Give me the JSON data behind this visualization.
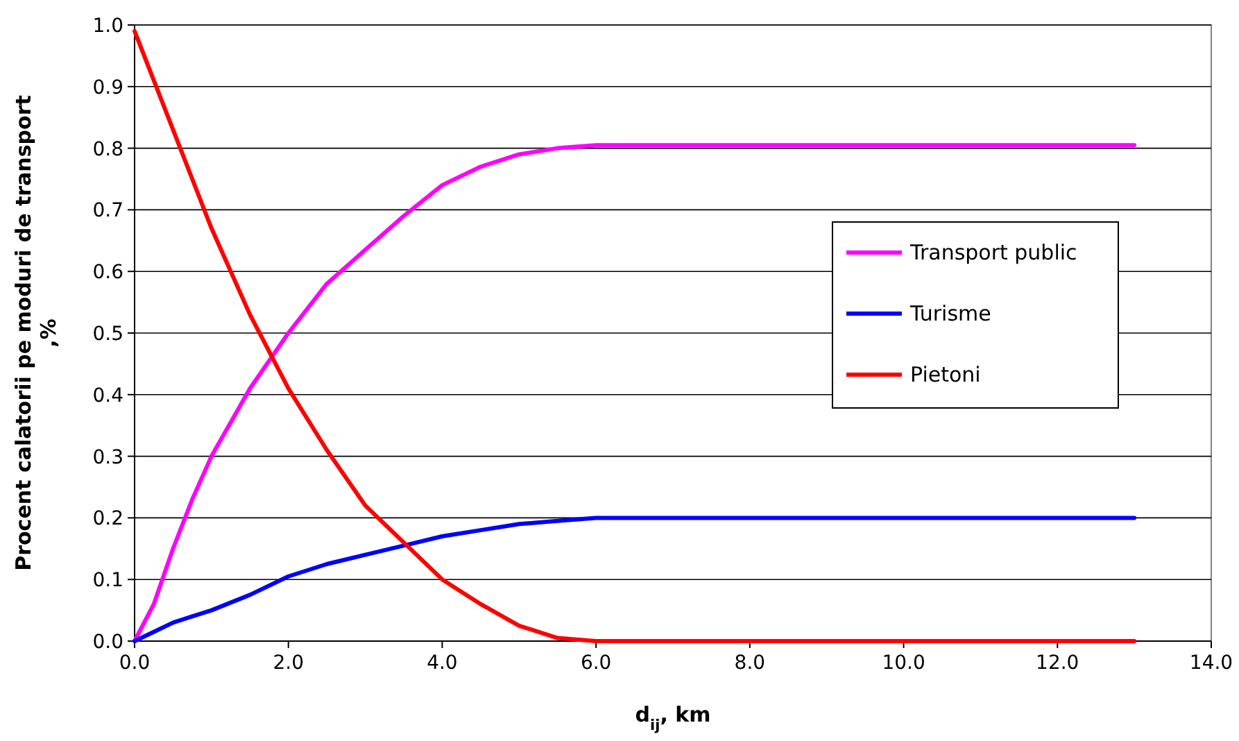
{
  "chart_data": {
    "type": "line",
    "xlabel": "d$_{ij}$, km",
    "ylabel": "Procent calatorii pe moduri de transport ,%",
    "xlim": [
      0,
      14
    ],
    "ylim": [
      0,
      1
    ],
    "xticks": [
      {
        "value": 0,
        "label": "0.0"
      },
      {
        "value": 2,
        "label": "2.0"
      },
      {
        "value": 4,
        "label": "4.0"
      },
      {
        "value": 6,
        "label": "6.0"
      },
      {
        "value": 8,
        "label": "8.0"
      },
      {
        "value": 10,
        "label": "10.0"
      },
      {
        "value": 12,
        "label": "12.0"
      },
      {
        "value": 14,
        "label": "14.0"
      }
    ],
    "yticks": [
      {
        "value": 0,
        "label": "0.0"
      },
      {
        "value": 0.1,
        "label": "0.1"
      },
      {
        "value": 0.2,
        "label": "0.2"
      },
      {
        "value": 0.3,
        "label": "0.3"
      },
      {
        "value": 0.4,
        "label": "0.4"
      },
      {
        "value": 0.5,
        "label": "0.5"
      },
      {
        "value": 0.6,
        "label": "0.6"
      },
      {
        "value": 0.7,
        "label": "0.7"
      },
      {
        "value": 0.8,
        "label": "0.8"
      },
      {
        "value": 0.9,
        "label": "0.9"
      },
      {
        "value": 1,
        "label": "1.0"
      }
    ],
    "grid": "y",
    "legend": "right",
    "marker": "none",
    "line_style": "solid",
    "x": [
      0,
      0.25,
      0.5,
      0.75,
      1,
      1.5,
      2,
      2.5,
      3,
      3.5,
      4,
      4.5,
      5,
      5.5,
      6,
      6.5,
      7,
      8,
      9,
      10,
      11,
      12,
      13
    ],
    "series": [
      {
        "name": "Transport public",
        "color": "#ff00ff",
        "values": [
          0,
          0.06,
          0.15,
          0.23,
          0.3,
          0.41,
          0.5,
          0.58,
          0.635,
          0.69,
          0.74,
          0.77,
          0.79,
          0.8,
          0.805,
          0.805,
          0.805,
          0.805,
          0.805,
          0.805,
          0.805,
          0.805,
          0.805
        ]
      },
      {
        "name": "Turisme",
        "color": "#0000ff",
        "values": [
          0,
          0.015,
          0.03,
          0.04,
          0.05,
          0.075,
          0.105,
          0.125,
          0.14,
          0.155,
          0.17,
          0.18,
          0.19,
          0.195,
          0.2,
          0.2,
          0.2,
          0.2,
          0.2,
          0.2,
          0.2,
          0.2,
          0.2
        ]
      },
      {
        "name": "Pietoni",
        "color": "#ff0000",
        "values": [
          0.99,
          0.91,
          0.83,
          0.75,
          0.67,
          0.53,
          0.41,
          0.31,
          0.22,
          0.16,
          0.1,
          0.06,
          0.025,
          0.005,
          0,
          0,
          0,
          0,
          0,
          0,
          0,
          0,
          0
        ]
      }
    ]
  }
}
